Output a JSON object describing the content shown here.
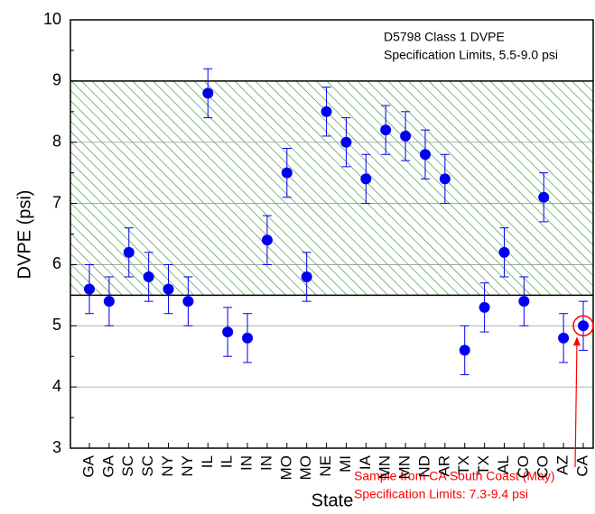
{
  "chart_data": {
    "type": "errorbar",
    "x_label": "State",
    "y_label": "DVPE (psi)",
    "categories": [
      "GA",
      "GA",
      "SC",
      "SC",
      "NY",
      "NY",
      "IL",
      "IL",
      "IN",
      "IN",
      "MO",
      "MO",
      "NE",
      "MI",
      "IA",
      "MN",
      "MN",
      "ND",
      "AR",
      "TX",
      "TX",
      "AL",
      "CO",
      "CO",
      "AZ",
      "CA"
    ],
    "series": [
      {
        "name": "DVPE",
        "color": "#0000ee",
        "values": [
          5.6,
          5.4,
          6.2,
          5.8,
          5.6,
          5.4,
          8.8,
          4.9,
          4.8,
          6.4,
          7.5,
          5.8,
          8.5,
          8.0,
          7.4,
          8.2,
          8.1,
          7.8,
          7.4,
          4.6,
          5.3,
          6.2,
          5.4,
          7.1,
          4.8,
          5.0
        ],
        "errors": [
          0.4,
          0.4,
          0.4,
          0.4,
          0.4,
          0.4,
          0.4,
          0.4,
          0.4,
          0.4,
          0.4,
          0.4,
          0.4,
          0.4,
          0.4,
          0.4,
          0.4,
          0.4,
          0.4,
          0.4,
          0.4,
          0.4,
          0.4,
          0.4,
          0.4,
          0.4
        ]
      }
    ],
    "spec_band": [
      5.5,
      9.0
    ],
    "band_color": "#2e8b2e",
    "ylim": [
      3,
      10
    ],
    "yticks": [
      3,
      4,
      5,
      6,
      7,
      8,
      9,
      10
    ],
    "grid": true,
    "annotations": [
      "D5798 Class 1 DVPE",
      "Specification Limits, 5.5-9.0 psi"
    ],
    "highlight_annotations": [
      "Sample from CA South Coast (May)",
      "Specification Limits: 7.3-9.4 psi"
    ],
    "highlight_color": "#ff0000"
  }
}
